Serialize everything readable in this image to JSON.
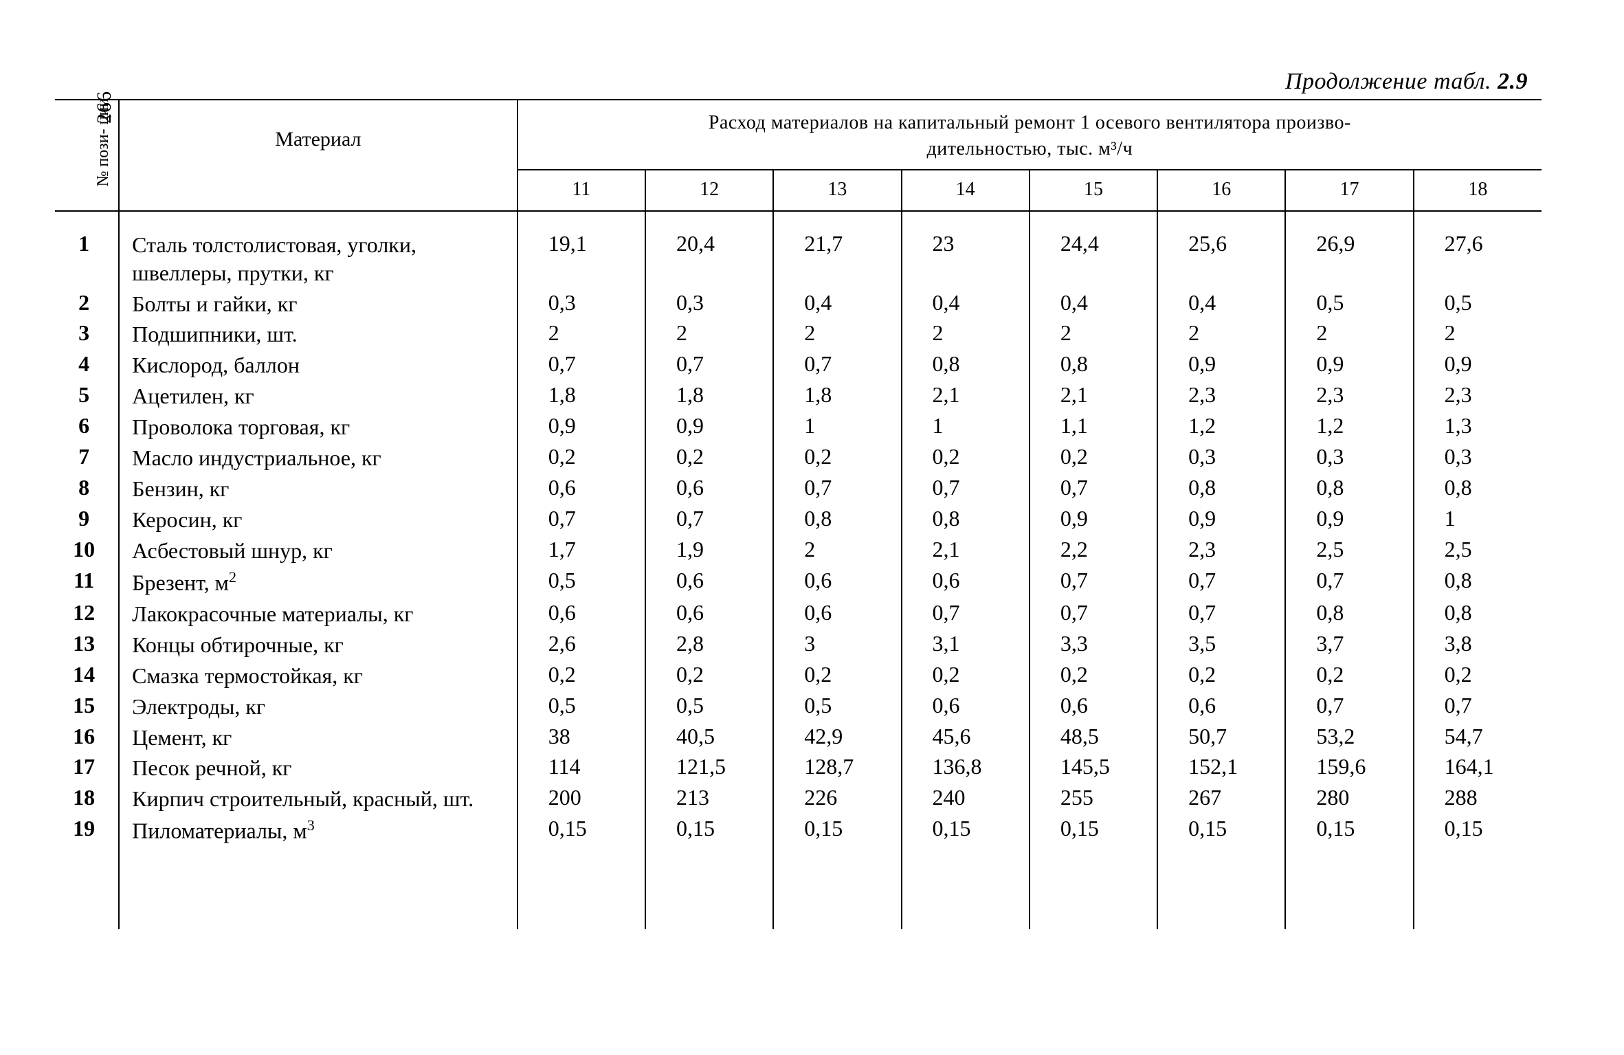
{
  "page_number": "266",
  "caption_prefix": "Продолжение табл. ",
  "caption_num": "2.9",
  "header": {
    "idx_label": "№ пози-\nции",
    "material_label": "Материал",
    "span_line1": "Расход материалов на капитальный ремонт 1 осевого вентилятора произво-",
    "span_line2": "дительностью,   тыс.   м³/ч",
    "col_nums": [
      "11",
      "12",
      "13",
      "14",
      "15",
      "16",
      "17",
      "18"
    ]
  },
  "rows": [
    {
      "n": "1",
      "mat": "Сталь толстолистовая, уголки, швеллеры, прутки, кг",
      "v": [
        "19,1",
        "20,4",
        "21,7",
        "23",
        "24,4",
        "25,6",
        "26,9",
        "27,6"
      ]
    },
    {
      "n": "2",
      "mat": "Болты и гайки, кг",
      "v": [
        "0,3",
        "0,3",
        "0,4",
        "0,4",
        "0,4",
        "0,4",
        "0,5",
        "0,5"
      ]
    },
    {
      "n": "3",
      "mat": "Подшипники, шт.",
      "v": [
        "2",
        "2",
        "2",
        "2",
        "2",
        "2",
        "2",
        "2"
      ]
    },
    {
      "n": "4",
      "mat": "Кислород, баллон",
      "v": [
        "0,7",
        "0,7",
        "0,7",
        "0,8",
        "0,8",
        "0,9",
        "0,9",
        "0,9"
      ]
    },
    {
      "n": "5",
      "mat": "Ацетилен, кг",
      "v": [
        "1,8",
        "1,8",
        "1,8",
        "2,1",
        "2,1",
        "2,3",
        "2,3",
        "2,3"
      ]
    },
    {
      "n": "6",
      "mat": "Проволока торговая, кг",
      "v": [
        "0,9",
        "0,9",
        "1",
        "1",
        "1,1",
        "1,2",
        "1,2",
        "1,3"
      ]
    },
    {
      "n": "7",
      "mat": "Масло индустриальное, кг",
      "v": [
        "0,2",
        "0,2",
        "0,2",
        "0,2",
        "0,2",
        "0,3",
        "0,3",
        "0,3"
      ]
    },
    {
      "n": "8",
      "mat": "Бензин, кг",
      "v": [
        "0,6",
        "0,6",
        "0,7",
        "0,7",
        "0,7",
        "0,8",
        "0,8",
        "0,8"
      ]
    },
    {
      "n": "9",
      "mat": "Керосин, кг",
      "v": [
        "0,7",
        "0,7",
        "0,8",
        "0,8",
        "0,9",
        "0,9",
        "0,9",
        "1"
      ]
    },
    {
      "n": "10",
      "mat": "Асбестовый шнур, кг",
      "v": [
        "1,7",
        "1,9",
        "2",
        "2,1",
        "2,2",
        "2,3",
        "2,5",
        "2,5"
      ]
    },
    {
      "n": "11",
      "mat": "Брезент, м²",
      "v": [
        "0,5",
        "0,6",
        "0,6",
        "0,6",
        "0,7",
        "0,7",
        "0,7",
        "0,8"
      ]
    },
    {
      "n": "12",
      "mat": "Лакокрасочные материалы, кг",
      "v": [
        "0,6",
        "0,6",
        "0,6",
        "0,7",
        "0,7",
        "0,7",
        "0,8",
        "0,8"
      ]
    },
    {
      "n": "13",
      "mat": "Концы обтирочные, кг",
      "v": [
        "2,6",
        "2,8",
        "3",
        "3,1",
        "3,3",
        "3,5",
        "3,7",
        "3,8"
      ]
    },
    {
      "n": "14",
      "mat": "Смазка термостойкая, кг",
      "v": [
        "0,2",
        "0,2",
        "0,2",
        "0,2",
        "0,2",
        "0,2",
        "0,2",
        "0,2"
      ]
    },
    {
      "n": "15",
      "mat": "Электроды, кг",
      "v": [
        "0,5",
        "0,5",
        "0,5",
        "0,6",
        "0,6",
        "0,6",
        "0,7",
        "0,7"
      ]
    },
    {
      "n": "16",
      "mat": "Цемент, кг",
      "v": [
        "38",
        "40,5",
        "42,9",
        "45,6",
        "48,5",
        "50,7",
        "53,2",
        "54,7"
      ]
    },
    {
      "n": "17",
      "mat": "Песок речной, кг",
      "v": [
        "114",
        "121,5",
        "128,7",
        "136,8",
        "145,5",
        "152,1",
        "159,6",
        "164,1"
      ]
    },
    {
      "n": "18",
      "mat": "Кирпич строительный, красный, шт.",
      "v": [
        "200",
        "213",
        "226",
        "240",
        "255",
        "267",
        "280",
        "288"
      ]
    },
    {
      "n": "19",
      "mat": "Пиломатериалы, м³",
      "v": [
        "0,15",
        "0,15",
        "0,15",
        "0,15",
        "0,15",
        "0,15",
        "0,15",
        "0,15"
      ]
    }
  ]
}
